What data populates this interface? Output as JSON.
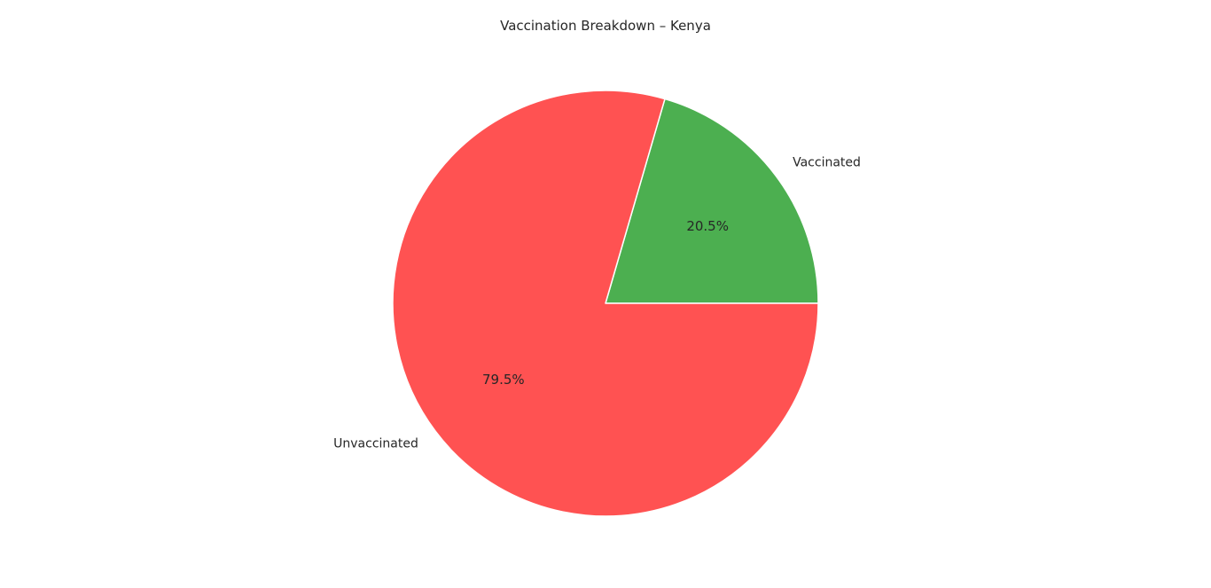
{
  "chart_data": {
    "type": "pie",
    "title": "Vaccination Breakdown – Kenya",
    "slices": [
      {
        "label": "Vaccinated",
        "value": 20.5,
        "pct_label": "20.5%",
        "color": "#4caf50"
      },
      {
        "label": "Unvaccinated",
        "value": 79.5,
        "pct_label": "79.5%",
        "color": "#ff5252"
      }
    ],
    "start_angle_deg": 0,
    "direction": "counterclockwise",
    "legend": "none"
  }
}
